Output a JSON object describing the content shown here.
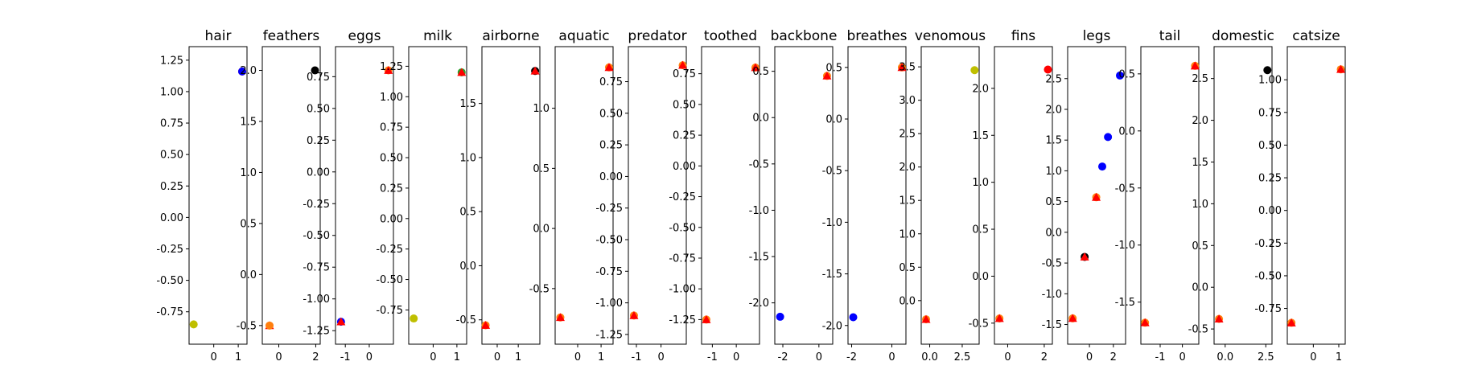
{
  "chart_data": {
    "type": "scatter",
    "description_note": "Parallel-coordinates style scatter panels, one per feature; each panel plots standardized value (y) vs a per-panel x value.",
    "colors": {
      "red": "#ff0000",
      "blue": "#0000ff",
      "yellow": "#bfbf00",
      "black": "#000000",
      "orange": "#ff7f0e",
      "green": "#2ca02c"
    },
    "panels": [
      {
        "title": "hair",
        "ylim": [
          -0.9,
          1.25
        ],
        "yticks": [
          "1.25",
          "1.00",
          "0.75",
          "0.50",
          "0.25",
          "0.00",
          "-0.25",
          "-0.50",
          "-0.75"
        ],
        "yticks_values": [
          1.25,
          1.0,
          0.75,
          0.5,
          0.25,
          0.0,
          -0.25,
          -0.5,
          -0.75
        ],
        "xlim": [
          -0.9,
          1.25
        ],
        "xticks": [
          "0",
          "1"
        ],
        "xticks_values": [
          0,
          1
        ],
        "points": [
          {
            "x": -0.82,
            "y": -0.85,
            "color": "yellow",
            "marker": "circle"
          },
          {
            "x": 1.16,
            "y": 1.16,
            "color": "red",
            "marker": "circle"
          },
          {
            "x": 1.16,
            "y": 1.16,
            "color": "blue",
            "marker": "circle"
          }
        ]
      },
      {
        "title": "feathers",
        "ylim": [
          -0.55,
          2.1
        ],
        "yticks": [
          "2.0",
          "1.5",
          "1.0",
          "0.5",
          "0.0",
          "-0.5"
        ],
        "yticks_values": [
          2.0,
          1.5,
          1.0,
          0.5,
          0.0,
          -0.5
        ],
        "xlim": [
          -0.75,
          2.1
        ],
        "xticks": [
          "0",
          "2"
        ],
        "xticks_values": [
          0,
          2
        ],
        "points": [
          {
            "x": 1.96,
            "y": 2.0,
            "color": "black",
            "marker": "circle"
          },
          {
            "x": -0.5,
            "y": -0.5,
            "color": "red",
            "marker": "triangle"
          },
          {
            "x": -0.5,
            "y": -0.5,
            "color": "orange",
            "marker": "circle"
          }
        ]
      },
      {
        "title": "eggs",
        "ylim": [
          -1.25,
          0.88
        ],
        "yticks": [
          "0.75",
          "0.50",
          "0.25",
          "0.00",
          "-0.25",
          "-0.50",
          "-0.75",
          "-1.00",
          "-1.25"
        ],
        "yticks_values": [
          0.75,
          0.5,
          0.25,
          0.0,
          -0.25,
          -0.5,
          -0.75,
          -1.0,
          -1.25
        ],
        "xlim": [
          -1.3,
          0.9
        ],
        "xticks": [
          "-1",
          "0"
        ],
        "xticks_values": [
          -1,
          0
        ],
        "points": [
          {
            "x": -1.18,
            "y": -1.18,
            "color": "blue",
            "marker": "circle"
          },
          {
            "x": -1.18,
            "y": -1.18,
            "color": "red",
            "marker": "triangle"
          },
          {
            "x": 0.8,
            "y": 0.8,
            "color": "orange",
            "marker": "circle"
          },
          {
            "x": 0.8,
            "y": 0.8,
            "color": "red",
            "marker": "triangle"
          }
        ]
      },
      {
        "title": "milk",
        "ylim": [
          -0.92,
          1.3
        ],
        "yticks": [
          "1.25",
          "1.00",
          "0.75",
          "0.50",
          "0.25",
          "0.00",
          "-0.25",
          "-0.50",
          "-0.75"
        ],
        "yticks_values": [
          1.25,
          1.0,
          0.75,
          0.5,
          0.25,
          0.0,
          -0.25,
          -0.5,
          -0.75
        ],
        "xlim": [
          -0.92,
          1.3
        ],
        "xticks": [
          "0",
          "1"
        ],
        "xticks_values": [
          0,
          1
        ],
        "points": [
          {
            "x": -0.82,
            "y": -0.82,
            "color": "yellow",
            "marker": "circle"
          },
          {
            "x": 1.2,
            "y": 1.2,
            "color": "green",
            "marker": "circle"
          },
          {
            "x": 1.2,
            "y": 1.2,
            "color": "red",
            "marker": "triangle"
          }
        ]
      },
      {
        "title": "airborne",
        "ylim": [
          -0.6,
          1.9
        ],
        "yticks": [
          "1.5",
          "1.0",
          "0.5",
          "0.0",
          "-0.5"
        ],
        "yticks_values": [
          1.5,
          1.0,
          0.5,
          0.0,
          -0.5
        ],
        "xlim": [
          -0.6,
          1.9
        ],
        "xticks": [
          "0",
          "1"
        ],
        "xticks_values": [
          0,
          1
        ],
        "points": [
          {
            "x": -0.55,
            "y": -0.55,
            "color": "orange",
            "marker": "circle"
          },
          {
            "x": -0.55,
            "y": -0.55,
            "color": "red",
            "marker": "triangle"
          },
          {
            "x": 1.8,
            "y": 1.8,
            "color": "black",
            "marker": "circle"
          },
          {
            "x": 1.8,
            "y": 1.8,
            "color": "red",
            "marker": "triangle"
          }
        ]
      },
      {
        "title": "aquatic",
        "ylim": [
          -0.85,
          1.4
        ],
        "yticks": [
          "1.0",
          "0.5",
          "0.0",
          "-0.5"
        ],
        "yticks_values": [
          1.0,
          0.5,
          0.0,
          -0.5
        ],
        "xlim": [
          -0.85,
          1.4
        ],
        "xticks": [
          "0",
          "1"
        ],
        "xticks_values": [
          0,
          1
        ],
        "points": [
          {
            "x": -0.74,
            "y": -0.74,
            "color": "orange",
            "marker": "circle"
          },
          {
            "x": -0.74,
            "y": -0.74,
            "color": "red",
            "marker": "triangle"
          },
          {
            "x": 1.34,
            "y": 1.34,
            "color": "orange",
            "marker": "circle"
          },
          {
            "x": 1.34,
            "y": 1.34,
            "color": "red",
            "marker": "triangle"
          }
        ]
      },
      {
        "title": "predator",
        "ylim": [
          -1.22,
          0.92
        ],
        "yticks": [
          "0.75",
          "0.50",
          "0.25",
          "0.00",
          "-0.25",
          "-0.50",
          "-0.75",
          "-1.00",
          "-1.25"
        ],
        "yticks_values": [
          0.75,
          0.5,
          0.25,
          0.0,
          -0.25,
          -0.5,
          -0.75,
          -1.0,
          -1.25
        ],
        "xlim": [
          -1.22,
          0.92
        ],
        "xticks": [
          "-1",
          "0"
        ],
        "xticks_values": [
          -1,
          0
        ],
        "points": [
          {
            "x": -1.1,
            "y": -1.1,
            "color": "orange",
            "marker": "circle"
          },
          {
            "x": -1.1,
            "y": -1.1,
            "color": "red",
            "marker": "triangle"
          },
          {
            "x": 0.88,
            "y": 0.88,
            "color": "orange",
            "marker": "circle"
          },
          {
            "x": 0.88,
            "y": 0.88,
            "color": "red",
            "marker": "triangle"
          }
        ]
      },
      {
        "title": "toothed",
        "ylim": [
          -1.34,
          0.86
        ],
        "yticks": [
          "0.75",
          "0.50",
          "0.25",
          "0.00",
          "-0.25",
          "-0.50",
          "-0.75",
          "-1.00",
          "-1.25"
        ],
        "yticks_values": [
          0.75,
          0.5,
          0.25,
          0.0,
          -0.25,
          -0.5,
          -0.75,
          -1.0,
          -1.25
        ],
        "xlim": [
          -1.34,
          0.86
        ],
        "xticks": [
          "-1",
          "0"
        ],
        "xticks_values": [
          -1,
          0
        ],
        "points": [
          {
            "x": -1.25,
            "y": -1.25,
            "color": "orange",
            "marker": "circle"
          },
          {
            "x": -1.25,
            "y": -1.25,
            "color": "red",
            "marker": "triangle"
          },
          {
            "x": 0.8,
            "y": 0.8,
            "color": "orange",
            "marker": "circle"
          },
          {
            "x": 0.8,
            "y": 0.8,
            "color": "red",
            "marker": "triangle"
          }
        ]
      },
      {
        "title": "backbone",
        "ylim": [
          -2.3,
          0.62
        ],
        "yticks": [
          "0.5",
          "0.0",
          "-0.5",
          "-1.0",
          "-1.5",
          "-2.0"
        ],
        "yticks_values": [
          0.5,
          0.0,
          -0.5,
          -1.0,
          -1.5,
          -2.0
        ],
        "xlim": [
          -2.3,
          0.62
        ],
        "xticks": [
          "-2",
          "0"
        ],
        "xticks_values": [
          -2,
          0
        ],
        "points": [
          {
            "x": -2.15,
            "y": -2.15,
            "color": "blue",
            "marker": "circle"
          },
          {
            "x": 0.45,
            "y": 0.45,
            "color": "orange",
            "marker": "circle"
          },
          {
            "x": 0.45,
            "y": 0.45,
            "color": "red",
            "marker": "triangle"
          }
        ]
      },
      {
        "title": "breathes",
        "ylim": [
          -2.05,
          0.57
        ],
        "yticks": [
          "0.5",
          "0.0",
          "-0.5",
          "-1.0",
          "-1.5",
          "-2.0"
        ],
        "yticks_values": [
          0.5,
          0.0,
          -0.5,
          -1.0,
          -1.5,
          -2.0
        ],
        "xlim": [
          -2.05,
          0.57
        ],
        "xticks": [
          "-2",
          "0"
        ],
        "xticks_values": [
          -2,
          0
        ],
        "points": [
          {
            "x": -1.92,
            "y": -1.92,
            "color": "blue",
            "marker": "circle"
          },
          {
            "x": 0.5,
            "y": 0.5,
            "color": "orange",
            "marker": "circle"
          },
          {
            "x": 0.5,
            "y": 0.5,
            "color": "red",
            "marker": "triangle"
          }
        ]
      },
      {
        "title": "venomous",
        "ylim": [
          -0.45,
          3.6
        ],
        "yticks": [
          "3.5",
          "3.0",
          "2.5",
          "2.0",
          "1.5",
          "1.0",
          "0.5",
          "0.0"
        ],
        "yticks_values": [
          3.5,
          3.0,
          2.5,
          2.0,
          1.5,
          1.0,
          0.5,
          0.0
        ],
        "xlim": [
          -0.45,
          3.6
        ],
        "xticks": [
          "0.0",
          "2.5"
        ],
        "xticks_values": [
          0.0,
          2.5
        ],
        "points": [
          {
            "x": -0.28,
            "y": -0.28,
            "color": "orange",
            "marker": "circle"
          },
          {
            "x": -0.28,
            "y": -0.28,
            "color": "red",
            "marker": "triangle"
          },
          {
            "x": 3.45,
            "y": 3.45,
            "color": "yellow",
            "marker": "circle"
          }
        ]
      },
      {
        "title": "fins",
        "ylim": [
          -0.58,
          2.3
        ],
        "yticks": [
          "2.0",
          "1.5",
          "1.0",
          "0.5",
          "0.0",
          "-0.5"
        ],
        "yticks_values": [
          2.0,
          1.5,
          1.0,
          0.5,
          0.0,
          -0.5
        ],
        "xlim": [
          -0.58,
          2.3
        ],
        "xticks": [
          "0",
          "2"
        ],
        "xticks_values": [
          0,
          2
        ],
        "points": [
          {
            "x": -0.45,
            "y": -0.45,
            "color": "orange",
            "marker": "circle"
          },
          {
            "x": -0.45,
            "y": -0.45,
            "color": "red",
            "marker": "triangle"
          },
          {
            "x": 2.2,
            "y": 2.2,
            "color": "red",
            "marker": "circle"
          }
        ]
      },
      {
        "title": "legs",
        "ylim": [
          -1.6,
          2.8
        ],
        "yticks": [
          "2.5",
          "2.0",
          "1.5",
          "1.0",
          "0.5",
          "0.0",
          "-0.5",
          "-1.0",
          "-1.5"
        ],
        "yticks_values": [
          2.5,
          2.0,
          1.5,
          1.0,
          0.5,
          0.0,
          -0.5,
          -1.0,
          -1.5
        ],
        "xlim": [
          -1.6,
          2.8
        ],
        "xticks": [
          "0",
          "2"
        ],
        "xticks_values": [
          0,
          2
        ],
        "points": [
          {
            "x": -1.4,
            "y": -1.4,
            "color": "orange",
            "marker": "circle"
          },
          {
            "x": -1.4,
            "y": -1.4,
            "color": "red",
            "marker": "triangle"
          },
          {
            "x": -0.4,
            "y": -0.4,
            "color": "black",
            "marker": "circle"
          },
          {
            "x": -0.4,
            "y": -0.4,
            "color": "red",
            "marker": "triangle"
          },
          {
            "x": 0.57,
            "y": 0.57,
            "color": "orange",
            "marker": "circle"
          },
          {
            "x": 0.57,
            "y": 0.57,
            "color": "red",
            "marker": "triangle"
          },
          {
            "x": 1.07,
            "y": 1.07,
            "color": "blue",
            "marker": "circle"
          },
          {
            "x": 1.55,
            "y": 1.55,
            "color": "blue",
            "marker": "circle"
          },
          {
            "x": 2.55,
            "y": 2.55,
            "color": "blue",
            "marker": "circle"
          }
        ]
      },
      {
        "title": "tail",
        "ylim": [
          -1.75,
          0.62
        ],
        "yticks": [
          "0.5",
          "0.0",
          "-0.5",
          "-1.0",
          "-1.5"
        ],
        "yticks_values": [
          0.5,
          0.0,
          -0.5,
          -1.0,
          -1.5
        ],
        "xlim": [
          -1.75,
          0.62
        ],
        "xticks": [
          "-1",
          "0"
        ],
        "xticks_values": [
          -1,
          0
        ],
        "points": [
          {
            "x": -1.68,
            "y": -1.68,
            "color": "orange",
            "marker": "circle"
          },
          {
            "x": -1.68,
            "y": -1.68,
            "color": "red",
            "marker": "triangle"
          },
          {
            "x": 0.57,
            "y": 0.57,
            "color": "orange",
            "marker": "circle"
          },
          {
            "x": 0.57,
            "y": 0.57,
            "color": "red",
            "marker": "triangle"
          }
        ]
      },
      {
        "title": "domestic",
        "ylim": [
          -0.52,
          2.72
        ],
        "yticks": [
          "2.5",
          "2.0",
          "1.5",
          "1.0",
          "0.5",
          "0.0",
          "-0.5"
        ],
        "yticks_values": [
          2.5,
          2.0,
          1.5,
          1.0,
          0.5,
          0.0,
          -0.5
        ],
        "xlim": [
          -0.52,
          2.72
        ],
        "xticks": [
          "0.0",
          "2.5"
        ],
        "xticks_values": [
          0.0,
          2.5
        ],
        "points": [
          {
            "x": -0.38,
            "y": -0.38,
            "color": "orange",
            "marker": "circle"
          },
          {
            "x": -0.38,
            "y": -0.38,
            "color": "red",
            "marker": "triangle"
          },
          {
            "x": 2.6,
            "y": 2.6,
            "color": "black",
            "marker": "circle"
          }
        ]
      },
      {
        "title": "catsize",
        "ylim": [
          -0.92,
          1.15
        ],
        "yticks": [
          "1.00",
          "0.75",
          "0.50",
          "0.25",
          "0.00",
          "-0.25",
          "-0.50",
          "-0.75"
        ],
        "yticks_values": [
          1.0,
          0.75,
          0.5,
          0.25,
          0.0,
          -0.25,
          -0.5,
          -0.75
        ],
        "xlim": [
          -0.92,
          1.15
        ],
        "xticks": [
          "0",
          "1"
        ],
        "xticks_values": [
          0,
          1
        ],
        "points": [
          {
            "x": -0.86,
            "y": -0.86,
            "color": "orange",
            "marker": "circle"
          },
          {
            "x": -0.86,
            "y": -0.86,
            "color": "red",
            "marker": "triangle"
          },
          {
            "x": 1.08,
            "y": 1.08,
            "color": "orange",
            "marker": "circle"
          },
          {
            "x": 1.08,
            "y": 1.08,
            "color": "red",
            "marker": "triangle"
          }
        ]
      }
    ]
  }
}
